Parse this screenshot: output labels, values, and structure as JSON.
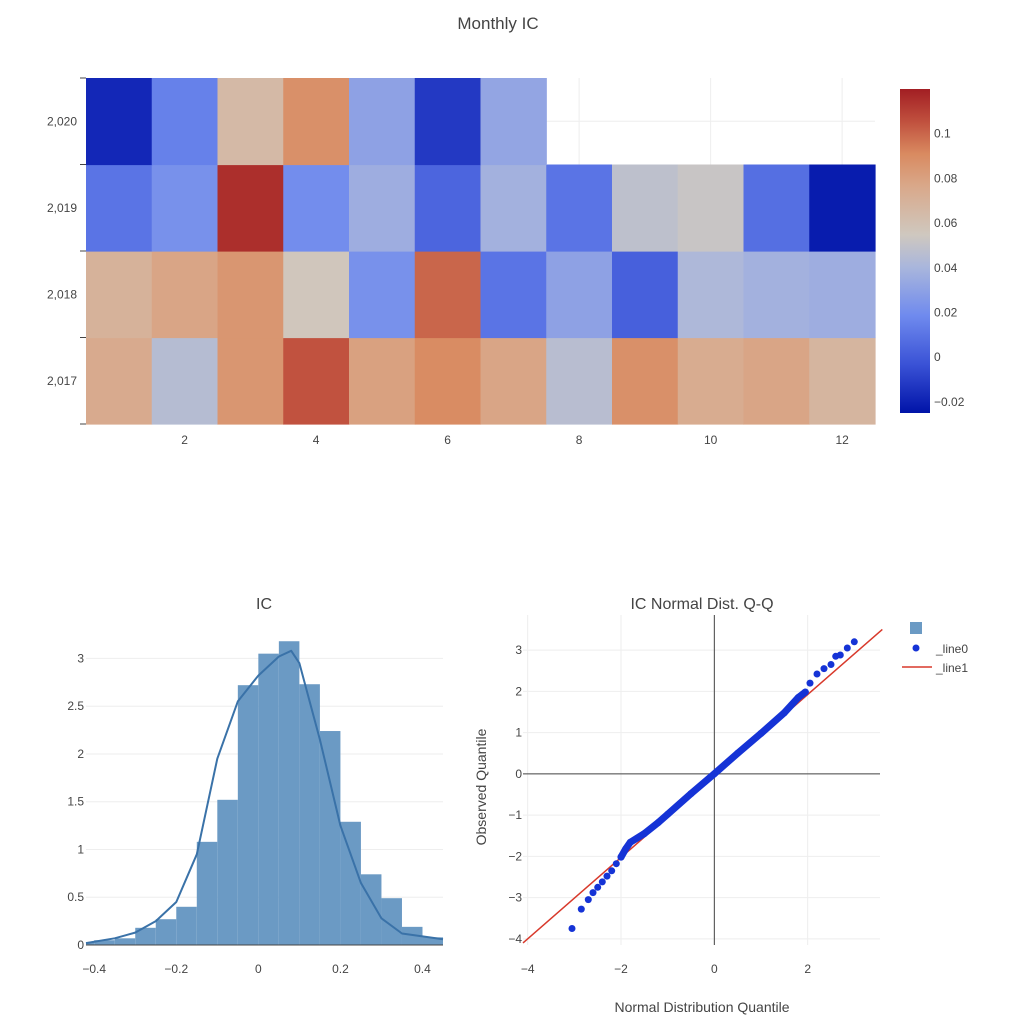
{
  "colors": {
    "hist_fill": "#6b9ac4",
    "kde_line": "#3a72a8",
    "qq_points": "#1533d6",
    "qq_line": "#d8392b",
    "grid": "#eeeeee",
    "zero_line": "#444444"
  },
  "chart_data": [
    {
      "type": "heatmap",
      "title": "Monthly IC",
      "x": [
        1,
        2,
        3,
        4,
        5,
        6,
        7,
        8,
        9,
        10,
        11,
        12
      ],
      "x_ticks": [
        2,
        4,
        6,
        8,
        10,
        12
      ],
      "y": [
        "2,017",
        "2,018",
        "2,019",
        "2,020"
      ],
      "z": [
        [
          0.075,
          0.045,
          0.085,
          0.105,
          0.08,
          0.09,
          0.078,
          0.046,
          0.088,
          0.074,
          0.078,
          0.068
        ],
        [
          0.07,
          0.078,
          0.085,
          0.056,
          0.022,
          0.1,
          0.01,
          0.03,
          0.002,
          0.042,
          0.038,
          0.036
        ],
        [
          0.01,
          0.022,
          0.115,
          0.02,
          0.036,
          0.004,
          0.038,
          0.01,
          0.048,
          0.052,
          0.008,
          -0.022
        ],
        [
          -0.018,
          0.015,
          0.065,
          0.088,
          0.03,
          -0.012,
          0.032,
          null,
          null,
          null,
          null,
          null
        ]
      ],
      "colorscale": "coolwarm",
      "zmin": -0.025,
      "zmax": 0.12,
      "colorbar_ticks": [
        -0.02,
        0,
        0.02,
        0.04,
        0.06,
        0.08,
        0.1
      ],
      "colorbar_labels": [
        "−0.02",
        "0",
        "0.02",
        "0.04",
        "0.06",
        "0.08",
        "0.1"
      ]
    },
    {
      "type": "bar",
      "title": "IC",
      "series_kind": "histogram with KDE line",
      "bin_edges": [
        -0.45,
        -0.4,
        -0.35,
        -0.3,
        -0.25,
        -0.2,
        -0.15,
        -0.1,
        -0.05,
        0,
        0.05,
        0.1,
        0.15,
        0.2,
        0.25,
        0.3,
        0.35,
        0.4,
        0.45
      ],
      "values": [
        0.03,
        0.05,
        0.07,
        0.18,
        0.27,
        0.4,
        1.08,
        1.52,
        2.72,
        3.05,
        3.18,
        2.73,
        2.24,
        1.29,
        0.74,
        0.49,
        0.19,
        0.08
      ],
      "kde": {
        "x": [
          -0.45,
          -0.35,
          -0.3,
          -0.25,
          -0.2,
          -0.15,
          -0.1,
          -0.05,
          0,
          0.05,
          0.08,
          0.1,
          0.15,
          0.2,
          0.25,
          0.3,
          0.35,
          0.45
        ],
        "y": [
          0.02,
          0.07,
          0.13,
          0.25,
          0.45,
          0.95,
          1.95,
          2.55,
          2.82,
          3.02,
          3.08,
          2.95,
          2.15,
          1.25,
          0.65,
          0.28,
          0.12,
          0.06
        ]
      },
      "x_ticks": [
        -0.4,
        -0.2,
        0,
        0.2,
        0.4
      ],
      "x_labels": [
        "−0.4",
        "−0.2",
        "0",
        "0.2",
        "0.4"
      ],
      "y_ticks": [
        0,
        0.5,
        1,
        1.5,
        2,
        2.5,
        3
      ],
      "y_labels": [
        "0",
        "0.5",
        "1",
        "1.5",
        "2",
        "2.5",
        "3"
      ],
      "xlim": [
        -0.42,
        0.45
      ],
      "ylim": [
        0,
        3.35
      ]
    },
    {
      "type": "scatter",
      "title": "IC Normal Dist. Q-Q",
      "xlabel": "Normal Distribution Quantile",
      "ylabel": "Observed Quantile",
      "series": [
        {
          "name": "",
          "kind": "histogram-marker"
        },
        {
          "name": "_line0",
          "kind": "points",
          "points": [
            [
              -3.05,
              -3.75
            ],
            [
              -2.85,
              -3.28
            ],
            [
              -2.7,
              -3.05
            ],
            [
              -2.6,
              -2.88
            ],
            [
              -2.5,
              -2.75
            ],
            [
              -2.4,
              -2.62
            ],
            [
              -2.3,
              -2.48
            ],
            [
              -2.2,
              -2.35
            ],
            [
              -2.1,
              -2.18
            ],
            [
              -2.0,
              -2.02
            ],
            [
              -1.9,
              -1.82
            ],
            [
              -1.8,
              -1.66
            ],
            [
              -1.5,
              -1.45
            ],
            [
              -1.2,
              -1.18
            ],
            [
              -1.0,
              -0.98
            ],
            [
              -0.5,
              -0.48
            ],
            [
              0.0,
              0.0
            ],
            [
              0.5,
              0.5
            ],
            [
              1.0,
              0.98
            ],
            [
              1.5,
              1.48
            ],
            [
              1.8,
              1.85
            ],
            [
              1.95,
              1.98
            ],
            [
              2.05,
              2.2
            ],
            [
              2.2,
              2.42
            ],
            [
              2.35,
              2.55
            ],
            [
              2.5,
              2.65
            ],
            [
              2.6,
              2.85
            ],
            [
              2.7,
              2.88
            ],
            [
              2.85,
              3.05
            ],
            [
              3.0,
              3.2
            ]
          ]
        },
        {
          "name": "_line1",
          "kind": "line",
          "x": [
            -4.1,
            3.6
          ],
          "y": [
            -4.1,
            3.5
          ]
        }
      ],
      "x_ticks": [
        -4,
        -2,
        0,
        2
      ],
      "x_labels": [
        "−4",
        "−2",
        "0",
        "2"
      ],
      "y_ticks": [
        -4,
        -3,
        -2,
        -1,
        0,
        1,
        2,
        3
      ],
      "y_labels": [
        "−4",
        "−3",
        "−2",
        "−1",
        "0",
        "1",
        "2",
        "3"
      ],
      "xlim": [
        -4.1,
        3.55
      ],
      "ylim": [
        -4.15,
        3.85
      ]
    }
  ]
}
